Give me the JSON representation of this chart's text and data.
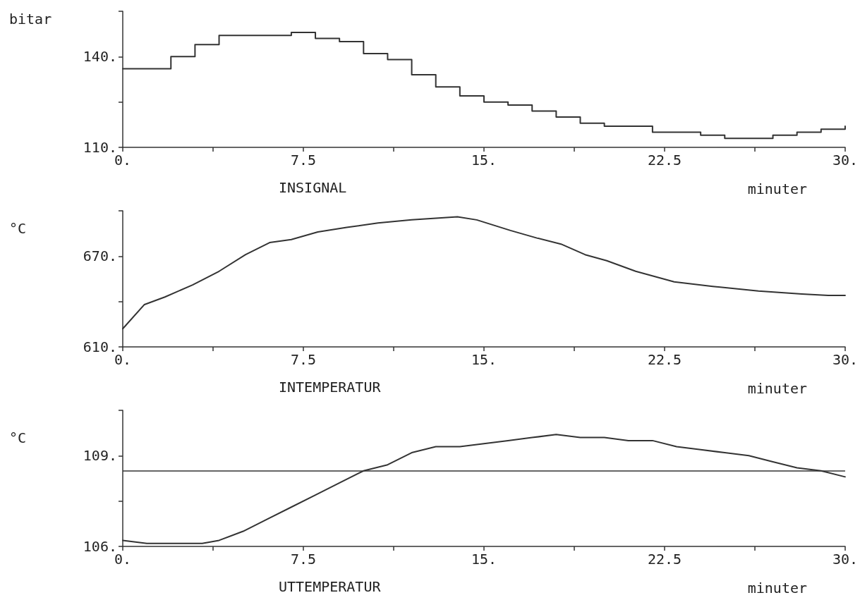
{
  "chart_data": [
    {
      "type": "step",
      "title": "INSIGNAL",
      "xlabel": "minuter",
      "ylabel": "bitar",
      "x": [
        0,
        2,
        3,
        4,
        7,
        8,
        9,
        10,
        11,
        12,
        13,
        14,
        15,
        16,
        17,
        18,
        19,
        20,
        22,
        23,
        24,
        25,
        26,
        27,
        28,
        29,
        30
      ],
      "series": [
        {
          "color": "#333333",
          "values": [
            136,
            140,
            144,
            147,
            148,
            146,
            145,
            141,
            139,
            134,
            130,
            127,
            125,
            124,
            122,
            120,
            118,
            117,
            115,
            115,
            114,
            113,
            113,
            114,
            115,
            116,
            117
          ]
        }
      ],
      "xlim": [
        0,
        30
      ],
      "xticks": [
        {
          "value": 0,
          "label": "0."
        },
        {
          "value": 3.75,
          "label": null
        },
        {
          "value": 7.5,
          "label": "7.5"
        },
        {
          "value": 11.25,
          "label": null
        },
        {
          "value": 15,
          "label": "15."
        },
        {
          "value": 18.75,
          "label": null
        },
        {
          "value": 22.5,
          "label": "22.5"
        },
        {
          "value": 26.25,
          "label": null
        },
        {
          "value": 30,
          "label": "30."
        }
      ],
      "ylim": [
        110,
        155
      ],
      "yticks": [
        {
          "value": 110,
          "label": "110."
        },
        {
          "value": 125,
          "label": null
        },
        {
          "value": 140,
          "label": "140."
        },
        {
          "value": 155,
          "label": null
        }
      ],
      "grid": false,
      "marker": "none",
      "line_style": "solid"
    },
    {
      "type": "line",
      "title": "INTEMPERATUR",
      "xlabel": "minuter",
      "ylabel": "°C",
      "x": [
        0,
        0.9,
        1.75,
        2.9,
        4.0,
        5.1,
        6.1,
        7.0,
        8.1,
        9.3,
        10.6,
        12.0,
        13.9,
        14.7,
        16.1,
        17.2,
        18.2,
        19.2,
        20.1,
        21.3,
        22.9,
        24.5,
        26.4,
        28.2,
        29.3,
        30
      ],
      "series": [
        {
          "color": "#333333",
          "values": [
            622,
            638,
            643,
            651,
            660,
            671,
            679,
            681,
            686,
            689,
            692,
            694,
            696,
            694,
            687,
            682,
            678,
            671,
            667,
            660,
            653,
            650,
            647,
            645,
            644,
            644
          ]
        }
      ],
      "xlim": [
        0,
        30
      ],
      "xticks": [
        {
          "value": 0,
          "label": "0."
        },
        {
          "value": 3.75,
          "label": null
        },
        {
          "value": 7.5,
          "label": "7.5"
        },
        {
          "value": 11.25,
          "label": null
        },
        {
          "value": 15,
          "label": "15."
        },
        {
          "value": 18.75,
          "label": null
        },
        {
          "value": 22.5,
          "label": "22.5"
        },
        {
          "value": 26.25,
          "label": null
        },
        {
          "value": 30,
          "label": "30."
        }
      ],
      "ylim": [
        610,
        700
      ],
      "yticks": [
        {
          "value": 610,
          "label": "610."
        },
        {
          "value": 640,
          "label": null
        },
        {
          "value": 670,
          "label": "670."
        },
        {
          "value": 700,
          "label": null
        }
      ],
      "grid": false,
      "marker": "none",
      "line_style": "solid"
    },
    {
      "type": "line",
      "title": "UTTEMPERATUR",
      "xlabel": "minuter",
      "ylabel": "°C",
      "x": [
        0,
        1,
        2,
        3.3,
        4,
        5,
        6,
        7,
        8,
        9,
        10,
        11,
        12,
        13,
        14,
        15,
        16,
        17,
        18,
        19,
        20,
        21,
        22,
        23,
        24,
        25,
        26,
        27,
        28,
        29,
        30
      ],
      "series": [
        {
          "color": "#333333",
          "values": [
            106.2,
            106.1,
            106.1,
            106.1,
            106.2,
            106.5,
            106.9,
            107.3,
            107.7,
            108.1,
            108.5,
            108.7,
            109.1,
            109.3,
            109.3,
            109.4,
            109.5,
            109.6,
            109.7,
            109.6,
            109.6,
            109.5,
            109.5,
            109.3,
            109.2,
            109.1,
            109.0,
            108.8,
            108.6,
            108.5,
            108.3
          ]
        }
      ],
      "ref_lines": [
        {
          "axis": "y",
          "value": 108.5,
          "label": null,
          "color": "#333333",
          "line_style": "solid"
        }
      ],
      "xlim": [
        0,
        30
      ],
      "xticks": [
        {
          "value": 0,
          "label": "0."
        },
        {
          "value": 3.75,
          "label": null
        },
        {
          "value": 7.5,
          "label": "7.5"
        },
        {
          "value": 11.25,
          "label": null
        },
        {
          "value": 15,
          "label": "15."
        },
        {
          "value": 18.75,
          "label": null
        },
        {
          "value": 22.5,
          "label": "22.5"
        },
        {
          "value": 26.25,
          "label": null
        },
        {
          "value": 30,
          "label": "30."
        }
      ],
      "ylim": [
        106,
        110.5
      ],
      "yticks": [
        {
          "value": 106,
          "label": "106."
        },
        {
          "value": 107.5,
          "label": null
        },
        {
          "value": 109,
          "label": "109."
        },
        {
          "value": 110.5,
          "label": null
        }
      ],
      "grid": false,
      "marker": "none",
      "line_style": "solid"
    }
  ]
}
